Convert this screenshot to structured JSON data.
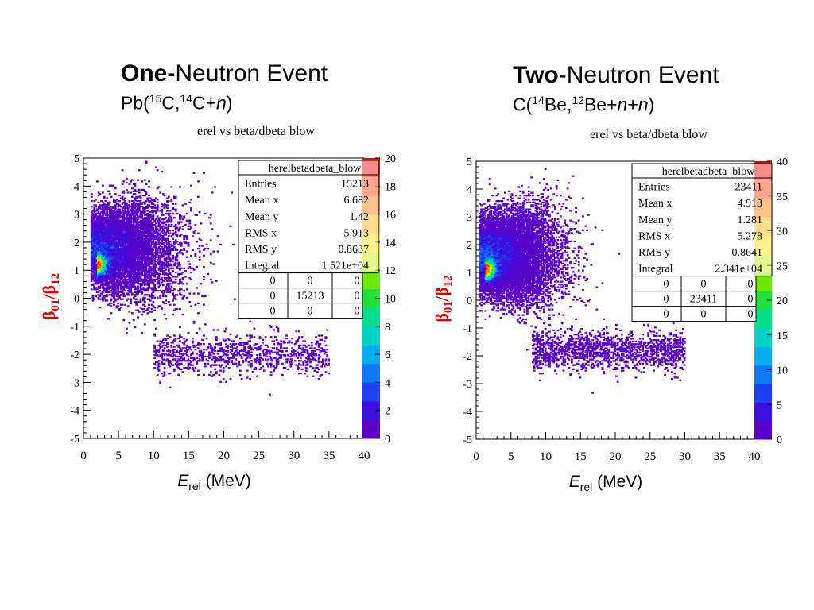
{
  "panels": [
    {
      "title_bold": "One-",
      "title_rest": "Neutron Event",
      "reaction": {
        "p1": "Pb(",
        "s1": "15",
        "p2": "C,",
        "s2": "14",
        "p3": "C+",
        "p4": "n",
        "p5": ")"
      },
      "stats": {
        "name": "herelbetadbeta_blow",
        "rows": [
          {
            "label": "Entries",
            "value": "15213"
          },
          {
            "label": "Mean x",
            "value": "6.682"
          },
          {
            "label": "Mean y",
            "value": "1.42"
          },
          {
            "label": "RMS x",
            "value": "5.913"
          },
          {
            "label": "RMS y",
            "value": "0.8637"
          },
          {
            "label": "Integral",
            "value": "1.521e+04"
          }
        ],
        "grid": [
          [
            "0",
            "0",
            "0"
          ],
          [
            "0",
            "15213",
            "0"
          ],
          [
            "0",
            "0",
            "0"
          ]
        ]
      }
    },
    {
      "title_bold": "Two",
      "title_rest": "-Neutron Event",
      "reaction": {
        "p1": "C(",
        "s1": "14",
        "p2": "Be,",
        "s2": "12",
        "p3": "Be+",
        "p4": "n",
        "p5": "+",
        "p6": "n",
        "p7": ")"
      },
      "stats": {
        "name": "herelbetadbeta_blow",
        "rows": [
          {
            "label": "Entries",
            "value": "23411"
          },
          {
            "label": "Mean x",
            "value": "4.913"
          },
          {
            "label": "Mean y",
            "value": "1.281"
          },
          {
            "label": "RMS x",
            "value": "5.278"
          },
          {
            "label": "RMS y",
            "value": "0.8641"
          },
          {
            "label": "Integral",
            "value": "2.341e+04"
          }
        ],
        "grid": [
          [
            "0",
            "0",
            "0"
          ],
          [
            "0",
            "23411",
            "0"
          ],
          [
            "0",
            "0",
            "0"
          ]
        ]
      }
    }
  ],
  "chart_data": [
    {
      "type": "heatmap",
      "title": "erel vs beta/dbeta blow",
      "xlabel_main": "E",
      "xlabel_sub": "rel",
      "xlabel_unit": " (MeV)",
      "ylabel_main": "β",
      "ylabel_sub1": "01",
      "ylabel_sep": "/β",
      "ylabel_sub2": "12",
      "xlim": [
        0,
        40
      ],
      "ylim": [
        -5,
        5
      ],
      "x_ticks": [
        "0",
        "5",
        "10",
        "15",
        "20",
        "25",
        "30",
        "35",
        "40"
      ],
      "y_ticks": [
        "-5",
        "-4",
        "-3",
        "-2",
        "-1",
        "0",
        "1",
        "2",
        "3",
        "4",
        "5"
      ],
      "z_range": [
        0,
        20
      ],
      "z_ticks": [
        "0",
        "2",
        "4",
        "6",
        "8",
        "10",
        "12",
        "14",
        "16",
        "18",
        "20"
      ],
      "peak": {
        "x": 1.8,
        "y": 1.2,
        "z": 20
      },
      "entries": 15213,
      "mean_x": 6.682,
      "mean_y": 1.42,
      "rms_x": 5.913,
      "rms_y": 0.8637,
      "sparse_band": {
        "x_range": [
          10,
          35
        ],
        "y_center": -2.0
      },
      "colormap": [
        "#5a00c8",
        "#3a10e0",
        "#1e40f5",
        "#0a78f5",
        "#00aef0",
        "#00d2c8",
        "#00e08a",
        "#20e040",
        "#6ee800",
        "#c8f000",
        "#ffe000",
        "#ffb400",
        "#ff7800",
        "#ff3c00",
        "#f00000"
      ]
    },
    {
      "type": "heatmap",
      "title": "erel vs beta/dbeta blow",
      "xlabel_main": "E",
      "xlabel_sub": "rel",
      "xlabel_unit": " (MeV)",
      "ylabel_main": "β",
      "ylabel_sub1": "01",
      "ylabel_sep": "/β",
      "ylabel_sub2": "12",
      "xlim": [
        0,
        40
      ],
      "ylim": [
        -5,
        5
      ],
      "x_ticks": [
        "0",
        "5",
        "10",
        "15",
        "20",
        "25",
        "30",
        "35",
        "40"
      ],
      "y_ticks": [
        "-5",
        "-4",
        "-3",
        "-2",
        "-1",
        "0",
        "1",
        "2",
        "3",
        "4",
        "5"
      ],
      "z_range": [
        0,
        40
      ],
      "z_ticks": [
        "0",
        "5",
        "10",
        "15",
        "20",
        "25",
        "30",
        "35",
        "40"
      ],
      "peak": {
        "x": 1.2,
        "y": 1.1,
        "z": 40
      },
      "entries": 23411,
      "mean_x": 4.913,
      "mean_y": 1.281,
      "rms_x": 5.278,
      "rms_y": 0.8641,
      "sparse_band": {
        "x_range": [
          8,
          30
        ],
        "y_center": -1.8
      },
      "colormap": [
        "#5a00c8",
        "#3a10e0",
        "#1e40f5",
        "#0a78f5",
        "#00aef0",
        "#00d2c8",
        "#00e08a",
        "#20e040",
        "#6ee800",
        "#c8f000",
        "#ffe000",
        "#ffb400",
        "#ff7800",
        "#ff3c00",
        "#f00000"
      ]
    }
  ]
}
